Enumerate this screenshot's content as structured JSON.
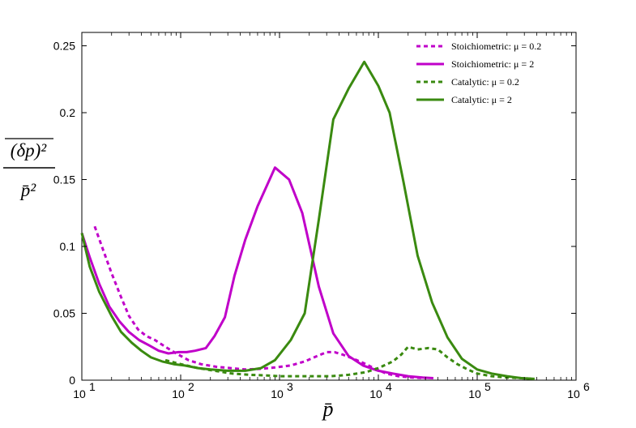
{
  "chart_data": {
    "type": "line",
    "title": "",
    "xlabel": "p̄",
    "ylabel_num": "(δp)²",
    "ylabel_den": "p̄²",
    "xscale": "log",
    "xlim": [
      10,
      1000000
    ],
    "ylim": [
      0,
      0.26
    ],
    "grid": false,
    "legend_position": "top-right",
    "x_ticks": [
      {
        "value": 10,
        "base": "10",
        "exp": "1"
      },
      {
        "value": 100,
        "base": "10",
        "exp": "2"
      },
      {
        "value": 1000,
        "base": "10",
        "exp": "3"
      },
      {
        "value": 10000,
        "base": "10",
        "exp": "4"
      },
      {
        "value": 100000,
        "base": "10",
        "exp": "5"
      },
      {
        "value": 1000000,
        "base": "10",
        "exp": "6"
      }
    ],
    "y_ticks": [
      {
        "value": 0,
        "label": "0"
      },
      {
        "value": 0.05,
        "label": "0.05"
      },
      {
        "value": 0.1,
        "label": "0.1"
      },
      {
        "value": 0.15,
        "label": "0.15"
      },
      {
        "value": 0.2,
        "label": "0.2"
      },
      {
        "value": 0.25,
        "label": "0.25"
      }
    ],
    "series": [
      {
        "name": "Stoichiometric: μ = 0.2",
        "color": "#c000c9",
        "style": "dashed",
        "x": [
          13.5,
          16.5,
          20,
          25,
          30,
          37,
          45,
          55,
          70,
          90,
          120,
          160,
          230,
          320,
          450,
          650,
          900,
          1300,
          1800,
          2400,
          3000,
          3600,
          4400,
          5600,
          7000,
          9000,
          12000,
          16000,
          22000,
          30000
        ],
        "y": [
          0.115,
          0.097,
          0.08,
          0.062,
          0.048,
          0.038,
          0.033,
          0.03,
          0.025,
          0.02,
          0.015,
          0.012,
          0.01,
          0.009,
          0.008,
          0.0085,
          0.0095,
          0.011,
          0.014,
          0.018,
          0.021,
          0.021,
          0.019,
          0.016,
          0.013,
          0.009,
          0.005,
          0.003,
          0.002,
          0.0015
        ]
      },
      {
        "name": "Stoichiometric: μ = 2",
        "color": "#c000c9",
        "style": "solid",
        "x": [
          10,
          12,
          15,
          19,
          24,
          30,
          38,
          48,
          60,
          75,
          95,
          115,
          140,
          180,
          220,
          280,
          350,
          450,
          600,
          900,
          1250,
          1700,
          2500,
          3500,
          5000,
          7000,
          10000,
          14000,
          20000,
          28000,
          36000
        ],
        "y": [
          0.11,
          0.092,
          0.072,
          0.055,
          0.044,
          0.036,
          0.03,
          0.026,
          0.022,
          0.02,
          0.021,
          0.021,
          0.022,
          0.024,
          0.033,
          0.047,
          0.078,
          0.105,
          0.13,
          0.159,
          0.15,
          0.125,
          0.07,
          0.035,
          0.018,
          0.011,
          0.007,
          0.005,
          0.003,
          0.002,
          0.0015
        ]
      },
      {
        "name": "Catalytic: μ = 0.2",
        "color": "#3a8a10",
        "style": "dashed",
        "x": [
          70,
          100,
          150,
          220,
          330,
          500,
          750,
          1000,
          1500,
          2200,
          3300,
          5000,
          7500,
          10000,
          14000,
          17000,
          20000,
          25000,
          32000,
          40000,
          50000,
          63000,
          80000,
          100000,
          140000,
          200000,
          280000,
          380000
        ],
        "y": [
          0.015,
          0.012,
          0.009,
          0.007,
          0.005,
          0.004,
          0.0035,
          0.003,
          0.003,
          0.003,
          0.003,
          0.004,
          0.006,
          0.009,
          0.014,
          0.019,
          0.025,
          0.023,
          0.024,
          0.023,
          0.017,
          0.012,
          0.008,
          0.005,
          0.003,
          0.002,
          0.0015,
          0.001
        ]
      },
      {
        "name": "Catalytic: μ = 2",
        "color": "#3a8a10",
        "style": "solid",
        "x": [
          10,
          12,
          15,
          20,
          25,
          32,
          40,
          50,
          65,
          85,
          110,
          150,
          200,
          300,
          450,
          650,
          900,
          1300,
          1800,
          2500,
          3500,
          5000,
          7200,
          10000,
          13000,
          18000,
          25000,
          35000,
          50000,
          70000,
          100000,
          140000,
          200000,
          280000,
          380000
        ],
        "y": [
          0.11,
          0.085,
          0.066,
          0.048,
          0.036,
          0.028,
          0.022,
          0.017,
          0.014,
          0.012,
          0.011,
          0.009,
          0.008,
          0.007,
          0.007,
          0.009,
          0.015,
          0.03,
          0.05,
          0.12,
          0.195,
          0.218,
          0.238,
          0.22,
          0.2,
          0.148,
          0.093,
          0.058,
          0.032,
          0.016,
          0.008,
          0.005,
          0.003,
          0.0015,
          0.001
        ]
      }
    ]
  }
}
